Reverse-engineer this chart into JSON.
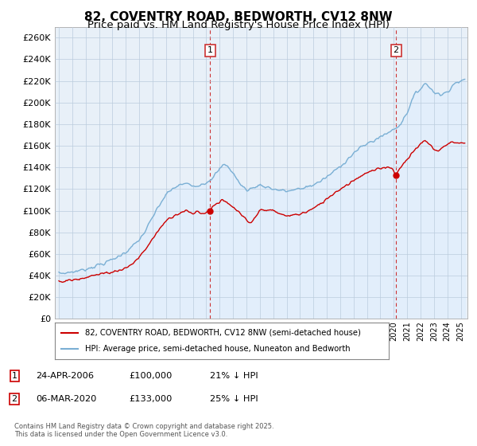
{
  "title": "82, COVENTRY ROAD, BEDWORTH, CV12 8NW",
  "subtitle": "Price paid vs. HM Land Registry's House Price Index (HPI)",
  "title_fontsize": 11,
  "subtitle_fontsize": 9.5,
  "ytick_values": [
    0,
    20000,
    40000,
    60000,
    80000,
    100000,
    120000,
    140000,
    160000,
    180000,
    200000,
    220000,
    240000,
    260000
  ],
  "ylim": [
    0,
    270000
  ],
  "xlim_start": 1994.7,
  "xlim_end": 2025.5,
  "purchase1_x": 2006.3,
  "purchase1_y": 100000,
  "purchase1_label": "1",
  "purchase2_x": 2020.17,
  "purchase2_y": 133000,
  "purchase2_label": "2",
  "legend_line1": "82, COVENTRY ROAD, BEDWORTH, CV12 8NW (semi-detached house)",
  "legend_line2": "HPI: Average price, semi-detached house, Nuneaton and Bedworth",
  "note1_label": "1",
  "note1_date": "24-APR-2006",
  "note1_price": "£100,000",
  "note1_hpi": "21% ↓ HPI",
  "note2_label": "2",
  "note2_date": "06-MAR-2020",
  "note2_price": "£133,000",
  "note2_hpi": "25% ↓ HPI",
  "copyright": "Contains HM Land Registry data © Crown copyright and database right 2025.\nThis data is licensed under the Open Government Licence v3.0.",
  "line_color_property": "#cc0000",
  "line_color_hpi": "#7aafd4",
  "fill_color_hpi": "#ddeeff",
  "background_color": "#ffffff",
  "plot_bg_color": "#e8f0f8",
  "grid_color": "#bbccdd",
  "vline_color": "#cc3333"
}
